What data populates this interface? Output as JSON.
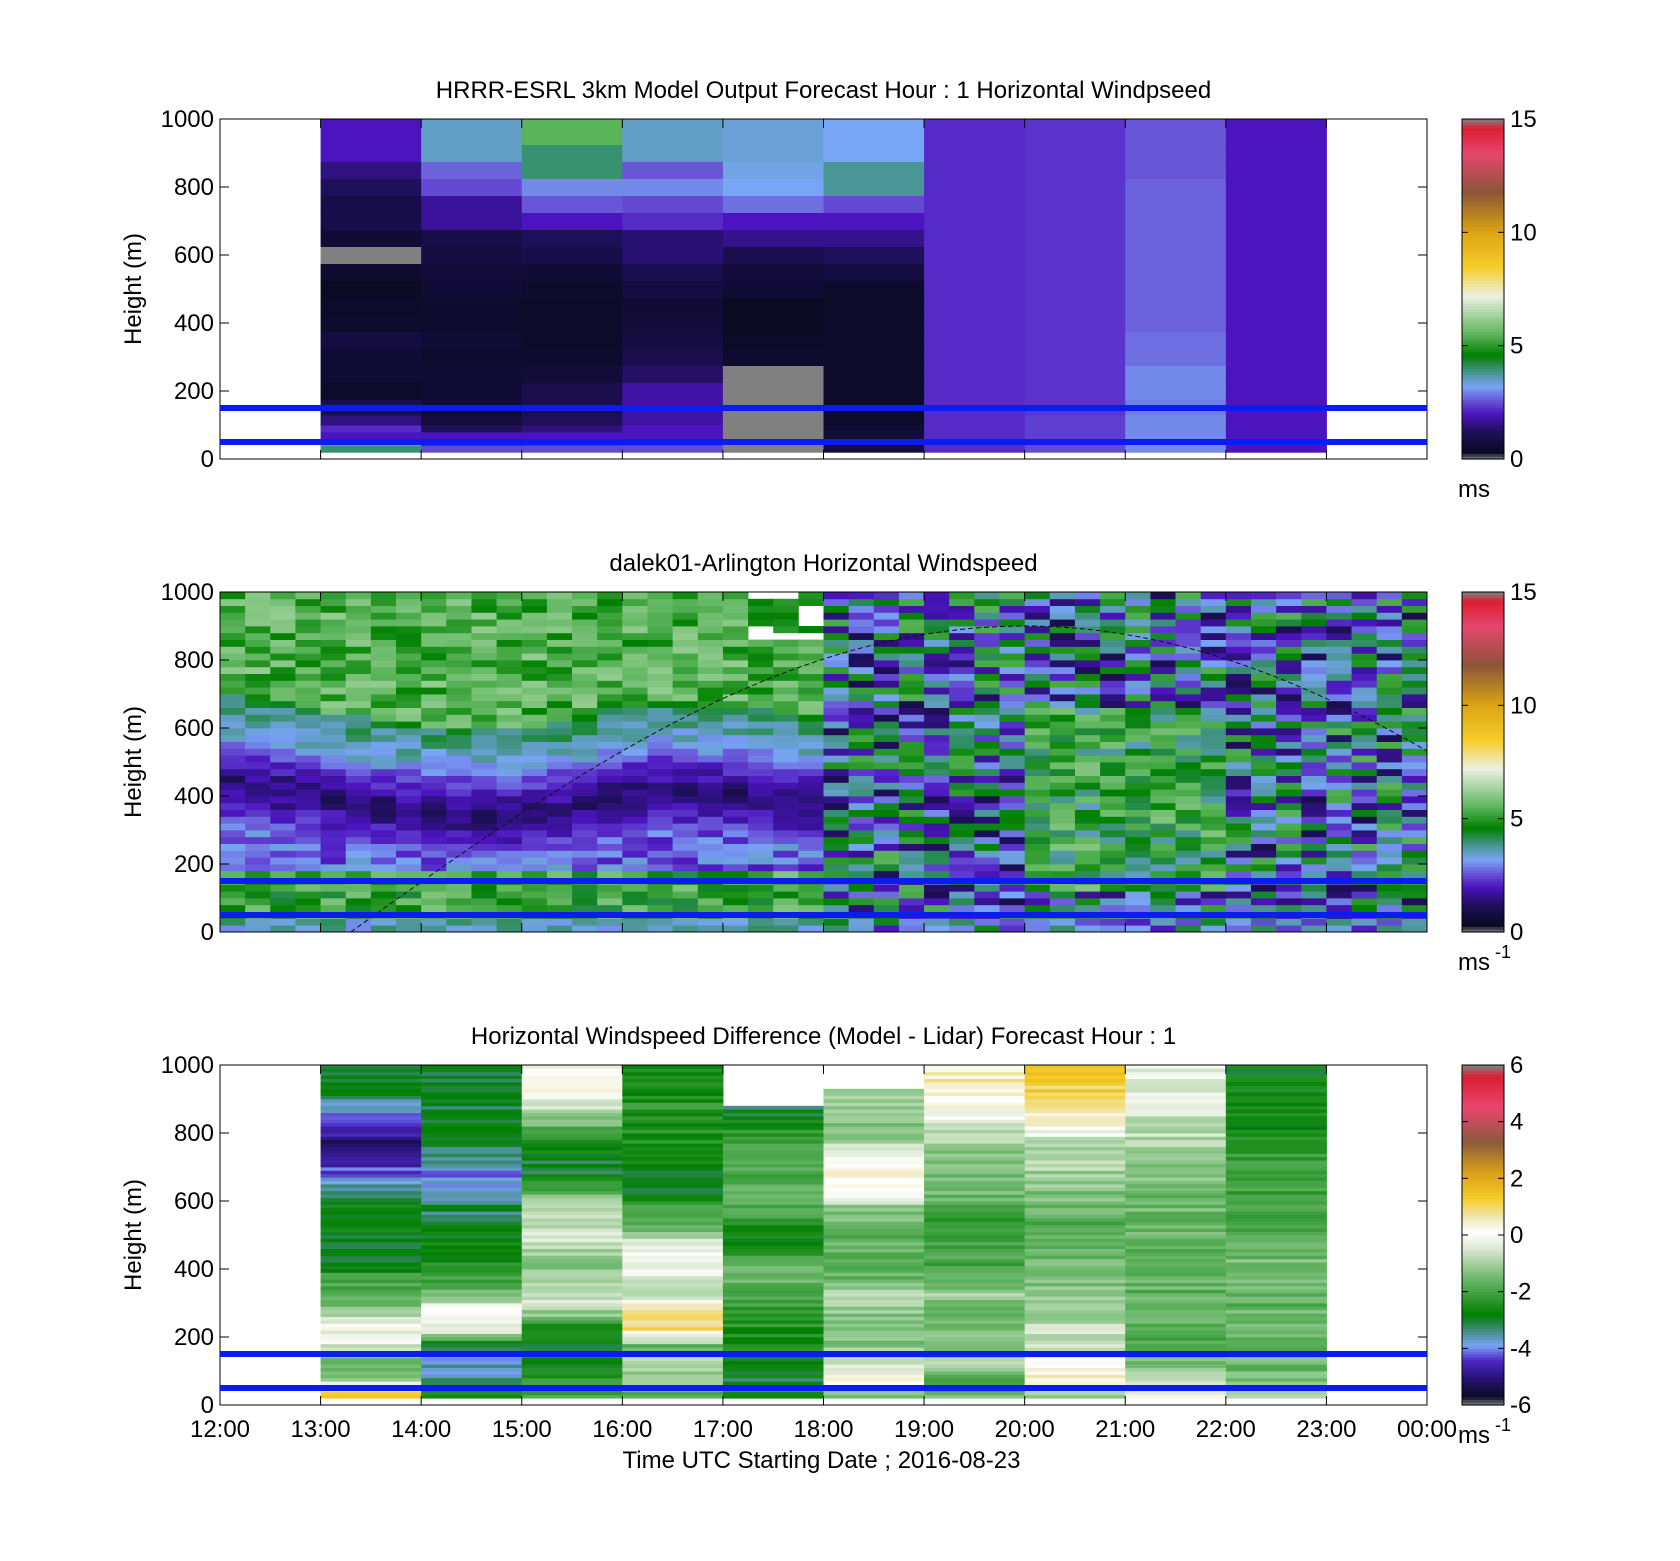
{
  "chart_data": [
    {
      "type": "heatmap",
      "title": "HRRR-ESRL 3km Model Output   Forecast Hour : 1 Horizontal Windpseed",
      "ylabel": "Height (m)",
      "yticks": [
        "0",
        "200",
        "400",
        "600",
        "800",
        "1000"
      ],
      "ylim": [
        0,
        1000
      ],
      "xlim_hours": [
        12,
        24
      ],
      "colorbar": {
        "ticks": [
          "0",
          "5",
          "10",
          "15"
        ],
        "range": [
          0,
          15
        ],
        "unit": "ms",
        "unit_sup": ""
      },
      "reference_heights": [
        50,
        150
      ],
      "data_extent_hours": [
        13,
        23
      ],
      "cells": {
        "rows_center": [
          30,
          50,
          70,
          90,
          115,
          150,
          200,
          250,
          300,
          350,
          400,
          450,
          500,
          550,
          600,
          650,
          700,
          750,
          800,
          850,
          900,
          950
        ],
        "rows_edges": [
          20,
          40,
          60,
          80,
          100,
          130,
          175,
          225,
          275,
          325,
          375,
          425,
          475,
          525,
          575,
          625,
          675,
          725,
          775,
          825,
          875,
          925,
          1000
        ],
        "columns_start_hour": [
          13,
          14,
          15,
          16,
          17,
          18,
          19,
          20,
          21,
          22
        ],
        "values": [
          [
            4.0,
            3.0,
            2.0,
            2.2,
            1.5,
            1.0,
            0.4,
            0.6,
            0.6,
            0.8,
            0.5,
            0.4,
            0.3,
            0.5,
            0.0,
            0.6,
            0.9,
            0.9,
            1.2,
            1.5,
            2.0,
            2.0
          ],
          [
            2.5,
            2.0,
            2.0,
            1.2,
            0.8,
            0.6,
            0.6,
            0.6,
            0.5,
            0.6,
            0.5,
            0.5,
            0.6,
            0.7,
            0.8,
            0.9,
            1.7,
            1.7,
            2.5,
            2.7,
            3.5,
            3.5
          ],
          [
            2.5,
            2.2,
            2.0,
            1.5,
            1.2,
            1.0,
            1.0,
            0.7,
            0.5,
            0.4,
            0.4,
            0.4,
            0.5,
            0.6,
            0.9,
            1.2,
            2.0,
            2.6,
            3.0,
            4.0,
            4.0,
            5.5
          ],
          [
            2.5,
            2.3,
            2.0,
            2.0,
            1.8,
            1.8,
            1.8,
            1.3,
            1.0,
            0.8,
            0.7,
            0.6,
            0.8,
            1.0,
            1.4,
            1.4,
            2.2,
            2.5,
            3.0,
            2.6,
            3.5,
            3.5
          ],
          [
            0.0,
            0.0,
            0.0,
            0.0,
            0.0,
            0.0,
            0.0,
            0.0,
            0.5,
            0.4,
            0.3,
            0.3,
            0.6,
            0.7,
            1.0,
            1.6,
            2.0,
            2.8,
            3.2,
            3.3,
            3.4,
            3.4
          ],
          [
            0.8,
            0.6,
            0.7,
            0.6,
            0.4,
            0.4,
            0.4,
            0.4,
            0.4,
            0.4,
            0.4,
            0.4,
            0.4,
            0.8,
            1.2,
            1.6,
            2.0,
            2.5,
            3.8,
            3.8,
            3.2,
            3.2
          ],
          [
            2.2,
            2.2,
            2.2,
            2.2,
            2.2,
            2.2,
            2.2,
            2.2,
            2.2,
            2.2,
            2.2,
            2.2,
            2.2,
            2.2,
            2.2,
            2.2,
            2.2,
            2.2,
            2.2,
            2.2,
            2.2,
            2.2
          ],
          [
            2.5,
            2.5,
            2.4,
            2.4,
            2.4,
            2.3,
            2.3,
            2.3,
            2.3,
            2.3,
            2.3,
            2.3,
            2.3,
            2.3,
            2.3,
            2.3,
            2.3,
            2.3,
            2.3,
            2.3,
            2.3,
            2.3
          ],
          [
            3.0,
            3.0,
            3.0,
            3.0,
            3.0,
            2.9,
            3.0,
            3.0,
            2.8,
            2.8,
            2.7,
            2.7,
            2.7,
            2.7,
            2.7,
            2.7,
            2.7,
            2.7,
            2.7,
            2.6,
            2.6,
            2.6
          ],
          [
            2.0,
            2.0,
            2.0,
            2.0,
            2.0,
            2.0,
            2.0,
            2.0,
            2.0,
            2.0,
            2.0,
            2.0,
            2.0,
            2.0,
            2.0,
            2.0,
            2.0,
            2.0,
            2.0,
            2.0,
            2.0,
            2.0
          ]
        ]
      }
    },
    {
      "type": "heatmap",
      "title": "dalek01-Arlington  Horizontal Windspeed",
      "ylabel": "Height (m)",
      "yticks": [
        "0",
        "200",
        "400",
        "600",
        "800",
        "1000"
      ],
      "ylim": [
        0,
        1000
      ],
      "xlim_hours": [
        12,
        24
      ],
      "colorbar": {
        "ticks": [
          "0",
          "5",
          "10",
          "15"
        ],
        "range": [
          0,
          15
        ],
        "unit": "ms",
        "unit_sup": "-1"
      },
      "reference_heights": [
        50,
        150
      ],
      "data_extent_hours": [
        12,
        23.9
      ],
      "description_of_pattern": {
        "low_speed_layer_center_m": {
          "hours": [
            12,
            13,
            14,
            15,
            16,
            17,
            18
          ],
          "height": [
            430,
            380,
            330,
            330,
            400,
            400,
            350
          ]
        },
        "upper_green_region_until_hour": 18,
        "mixed_after_hour": 18
      },
      "curve": {
        "style": "dashed",
        "peak_hour": 20.0,
        "peak_height_m": 900,
        "zero_hour": 13.3,
        "end_height_m": 540
      }
    },
    {
      "type": "heatmap",
      "title": "Horizontal Windspeed Difference (Model - Lidar) Forecast Hour : 1",
      "ylabel": "Height (m)",
      "xlabel": "Time UTC  Starting Date ; 2016-08-23",
      "yticks": [
        "0",
        "200",
        "400",
        "600",
        "800",
        "1000"
      ],
      "xticks": [
        "12:00",
        "13:00",
        "14:00",
        "15:00",
        "16:00",
        "17:00",
        "18:00",
        "19:00",
        "20:00",
        "21:00",
        "22:00",
        "23:00",
        "00:00"
      ],
      "ylim": [
        0,
        1000
      ],
      "xlim_hours": [
        12,
        24
      ],
      "colorbar": {
        "ticks": [
          "-6",
          "-4",
          "-2",
          "0",
          "2",
          "4",
          "6"
        ],
        "range": [
          -6,
          6
        ],
        "unit": "ms",
        "unit_sup": "-1"
      },
      "reference_heights": [
        50,
        150
      ],
      "data_extent_hours": [
        13,
        23
      ],
      "column_mean_profiles": {
        "columns_start_hour": [
          13,
          14,
          15,
          16,
          17,
          18,
          19,
          20,
          21,
          22
        ],
        "heights_m": [
          25,
          75,
          125,
          175,
          225,
          275,
          325,
          375,
          425,
          475,
          525,
          575,
          625,
          675,
          725,
          775,
          825,
          875,
          925,
          975
        ],
        "values": [
          [
            1.5,
            -1.0,
            -2.0,
            -0.5,
            0.0,
            -1.0,
            -2.0,
            -2.0,
            -3.0,
            -3.0,
            -2.5,
            -2.8,
            -3.2,
            -4.0,
            -4.8,
            -5.0,
            -4.5,
            -3.5,
            -3.0,
            -3.0
          ],
          [
            -2.5,
            -3.5,
            -3.8,
            -3.0,
            -0.2,
            0.3,
            -1.5,
            -2.0,
            -2.5,
            -2.5,
            -3.0,
            -3.2,
            -3.5,
            -4.0,
            -3.3,
            -3.0,
            -3.0,
            -3.0,
            -3.0,
            -3.0
          ],
          [
            -2.0,
            -2.0,
            -3.0,
            -3.0,
            -2.5,
            -1.0,
            -0.5,
            -1.0,
            -1.5,
            -0.5,
            -0.7,
            -1.0,
            -1.5,
            -3.0,
            -3.0,
            -2.5,
            -1.5,
            -0.5,
            0.2,
            0.0
          ],
          [
            -2.0,
            -1.0,
            -1.0,
            -1.5,
            1.0,
            0.8,
            -0.5,
            -0.5,
            0.0,
            -0.5,
            -1.5,
            -2.0,
            -3.0,
            -3.0,
            -2.7,
            -2.5,
            -2.5,
            -2.3,
            -2.5,
            -2.5
          ],
          [
            -3.0,
            -3.0,
            -2.7,
            -2.5,
            -2.5,
            -2.3,
            -2.0,
            -1.5,
            -1.5,
            -3.0,
            -2.5,
            -1.7,
            -1.5,
            -1.8,
            -2.0,
            -2.2,
            -2.5,
            -3.2,
            null,
            null
          ],
          [
            -1.5,
            0.3,
            -0.5,
            -1.2,
            -1.5,
            -1.2,
            -1.0,
            -1.5,
            -1.8,
            -1.7,
            -1.5,
            -1.2,
            -0.2,
            0.5,
            0.3,
            -1.0,
            -1.3,
            -1.0,
            -0.8,
            null
          ],
          [
            -1.5,
            -2.0,
            -1.0,
            -1.3,
            -1.5,
            -1.5,
            -1.0,
            -1.8,
            -2.0,
            -2.0,
            -2.2,
            -2.0,
            -1.5,
            -1.5,
            -1.3,
            -1.0,
            -0.5,
            0.3,
            0.6,
            0.6
          ],
          [
            -1.0,
            0.5,
            0.0,
            -0.5,
            -0.7,
            -1.0,
            -1.2,
            -1.5,
            -1.5,
            -1.8,
            -1.8,
            -1.5,
            -1.3,
            -1.0,
            -0.8,
            -0.8,
            0.5,
            0.8,
            1.2,
            1.3
          ],
          [
            0.2,
            -0.8,
            -1.5,
            -1.7,
            -1.8,
            -1.5,
            -1.7,
            -1.6,
            -1.7,
            -1.8,
            -1.5,
            -1.5,
            -1.5,
            -1.2,
            -1.0,
            -0.8,
            -0.7,
            -0.5,
            -0.3,
            -0.3
          ],
          [
            -1.2,
            -1.4,
            -1.5,
            -1.6,
            -1.7,
            -1.6,
            -1.7,
            -1.6,
            -1.5,
            -1.6,
            -1.8,
            -1.9,
            -2.0,
            -2.0,
            -2.2,
            -2.5,
            -2.6,
            -2.6,
            -2.7,
            -2.7
          ]
        ]
      }
    }
  ]
}
